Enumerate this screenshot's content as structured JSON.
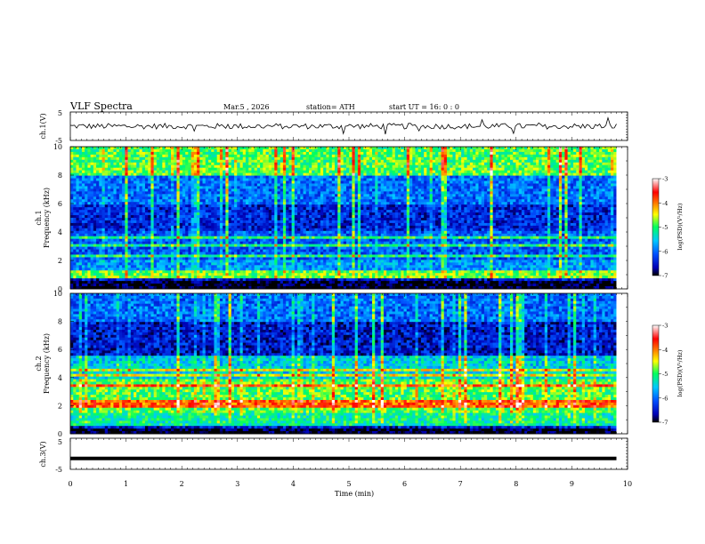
{
  "header": {
    "title": "VLF  Spectra",
    "date": "Mar.5  , 2026",
    "station": "station= ATH",
    "start": "start  UT  =    16: 0   : 0"
  },
  "chart_data": [
    {
      "type": "line",
      "panel": "ch1-waveform",
      "ylabel": "ch.1(V)",
      "ylim": [
        -5,
        5
      ],
      "yticks": [
        5,
        -5
      ],
      "xlim": [
        0,
        10
      ],
      "x_data_extent": [
        0,
        9.8
      ],
      "series": [
        {
          "level_V": 0.0,
          "noise_amplitude_V": 1.0,
          "spike_amplitude_V": 2.5
        }
      ]
    },
    {
      "type": "heatmap",
      "panel": "ch1-spectrogram",
      "ylabel": "Frequency  (kHz)",
      "channel_label": "ch.1",
      "ylim": [
        0,
        10
      ],
      "yticks": [
        10,
        8,
        6,
        4,
        2,
        0
      ],
      "xlim": [
        0,
        10
      ],
      "x_data_extent": [
        0,
        9.8
      ],
      "colorbar": {
        "label": "log(PSD)(V²/Hz)",
        "range": [
          -7,
          -3
        ],
        "ticks": [
          -3,
          -4,
          -5,
          -6,
          -7
        ]
      },
      "bands": [
        {
          "freq_kHz": [
            8.0,
            10.0
          ],
          "logPSD": -4.9
        },
        {
          "freq_kHz": [
            6.0,
            8.0
          ],
          "logPSD": -6.0
        },
        {
          "freq_kHz": [
            4.0,
            6.0
          ],
          "logPSD": -6.4
        },
        {
          "freq_kHz": [
            2.0,
            4.0
          ],
          "logPSD": -6.1
        },
        {
          "freq_kHz": [
            0.8,
            2.0
          ],
          "logPSD": -5.8
        },
        {
          "freq_kHz": [
            0.0,
            0.6
          ],
          "logPSD": -7.0
        }
      ],
      "lines_kHz": [
        3.6,
        3.1,
        2.3,
        1.1,
        0.8
      ]
    },
    {
      "type": "heatmap",
      "panel": "ch2-spectrogram",
      "ylabel": "Frequency  (kHz)",
      "channel_label": "ch.2",
      "ylim": [
        0,
        10
      ],
      "yticks": [
        10,
        8,
        6,
        4,
        2,
        0
      ],
      "xlim": [
        0,
        10
      ],
      "x_data_extent": [
        0,
        9.8
      ],
      "colorbar": {
        "label": "log(PSD)(V²/Hz)",
        "range": [
          -7,
          -3
        ],
        "ticks": [
          -3,
          -4,
          -5,
          -6,
          -7
        ]
      },
      "bands": [
        {
          "freq_kHz": [
            8.0,
            10.0
          ],
          "logPSD": -6.0
        },
        {
          "freq_kHz": [
            5.5,
            8.0
          ],
          "logPSD": -6.5
        },
        {
          "freq_kHz": [
            3.8,
            5.5
          ],
          "logPSD": -5.5
        },
        {
          "freq_kHz": [
            1.5,
            3.8
          ],
          "logPSD": -4.9
        },
        {
          "freq_kHz": [
            0.6,
            1.5
          ],
          "logPSD": -5.2
        },
        {
          "freq_kHz": [
            0.0,
            0.4
          ],
          "logPSD": -7.0
        }
      ],
      "lines_kHz": [
        4.6,
        4.2,
        3.4,
        2.2,
        1.9
      ]
    },
    {
      "type": "line",
      "panel": "ch3-waveform",
      "ylabel": "ch.3(V)",
      "ylim": [
        -5,
        5
      ],
      "yticks": [
        5,
        -5
      ],
      "xlim": [
        0,
        10
      ],
      "x_data_extent": [
        0,
        9.8
      ],
      "xlabel": "Time  (min)",
      "xticks": [
        0,
        1,
        2,
        3,
        4,
        5,
        6,
        7,
        8,
        9,
        10
      ],
      "series": [
        {
          "level_V": -1.5,
          "noise_amplitude_V": 0.0,
          "spike_amplitude_V": 0.0
        }
      ]
    }
  ],
  "colors": {
    "colormap": [
      "#000000",
      "#0000b4",
      "#0050ff",
      "#00c8ff",
      "#00ff60",
      "#ffff00",
      "#ff7800",
      "#ff0000",
      "#ffffff"
    ]
  }
}
